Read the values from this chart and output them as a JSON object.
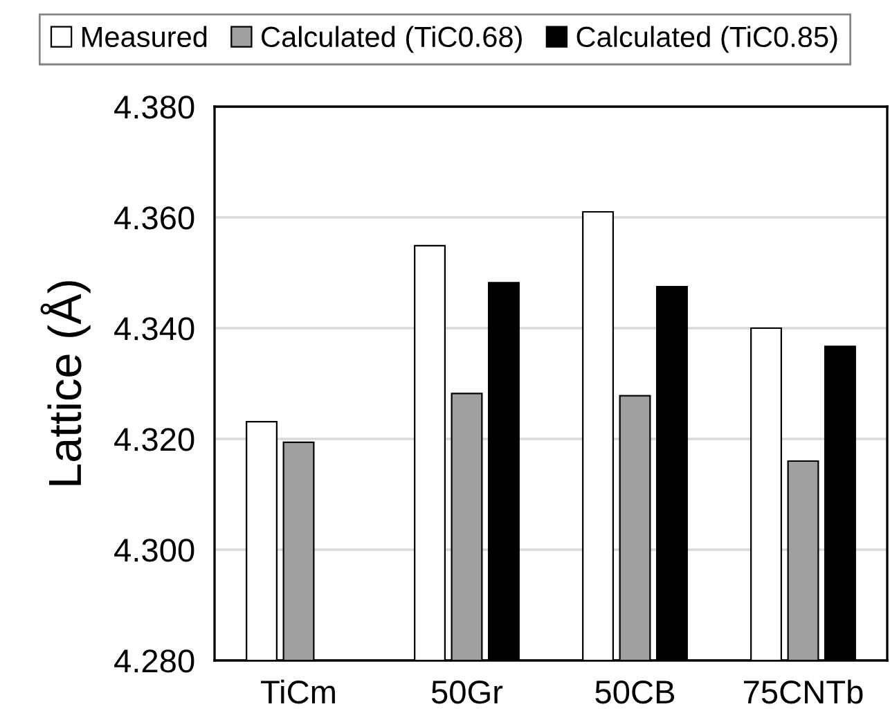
{
  "chart_data": {
    "type": "bar",
    "ylabel": "Lattice (Å)",
    "categories": [
      "TiCm",
      "50Gr",
      "50CB",
      "75CNTb"
    ],
    "series": [
      {
        "name": "Measured",
        "color": "#ffffff",
        "values": [
          4.3231,
          4.3549,
          4.361,
          4.34
        ]
      },
      {
        "name": "Calculated (TiC0.68)",
        "color": "#a0a0a0",
        "values": [
          4.3194,
          4.3282,
          4.3278,
          4.316
        ]
      },
      {
        "name": "Calculated (TiC0.85)",
        "color": "#000000",
        "values": [
          null,
          4.3482,
          4.3475,
          4.3367
        ]
      }
    ],
    "ylim": [
      4.28,
      4.38
    ],
    "yticks": [
      {
        "value": 4.28,
        "label": "4.280"
      },
      {
        "value": 4.3,
        "label": "4.300"
      },
      {
        "value": 4.32,
        "label": "4.320"
      },
      {
        "value": 4.34,
        "label": "4.340"
      },
      {
        "value": 4.36,
        "label": "4.360"
      },
      {
        "value": 4.38,
        "label": "4.380"
      }
    ],
    "grid": "y",
    "legend": "top"
  }
}
